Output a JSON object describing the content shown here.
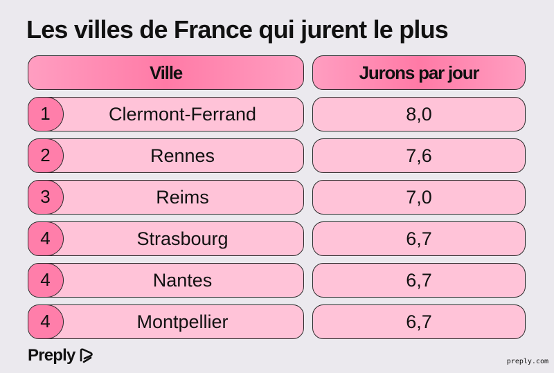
{
  "title": "Les villes de France qui jurent le plus",
  "headers": {
    "city": "Ville",
    "value": "Jurons par jour"
  },
  "rows": [
    {
      "rank": "1",
      "city": "Clermont-Ferrand",
      "value": "8,0"
    },
    {
      "rank": "2",
      "city": "Rennes",
      "value": "7,6"
    },
    {
      "rank": "3",
      "city": "Reims",
      "value": "7,0"
    },
    {
      "rank": "4",
      "city": "Strasbourg",
      "value": "6,7"
    },
    {
      "rank": "4",
      "city": "Nantes",
      "value": "6,7"
    },
    {
      "rank": "4",
      "city": "Montpellier",
      "value": "6,7"
    }
  ],
  "chart_data": {
    "type": "table",
    "title": "Les villes de France qui jurent le plus",
    "columns": [
      "Ville",
      "Jurons par jour"
    ],
    "categories": [
      "Clermont-Ferrand",
      "Rennes",
      "Reims",
      "Strasbourg",
      "Nantes",
      "Montpellier"
    ],
    "values": [
      8.0,
      7.6,
      7.0,
      6.7,
      6.7,
      6.7
    ]
  },
  "brand": {
    "name": "Preply",
    "url": "preply.com"
  },
  "colors": {
    "background": "#ebe9ee",
    "header_pink": "#ff7aa6",
    "cell_pink": "#ffc3d8",
    "rank_pink": "#ff7eaa"
  }
}
